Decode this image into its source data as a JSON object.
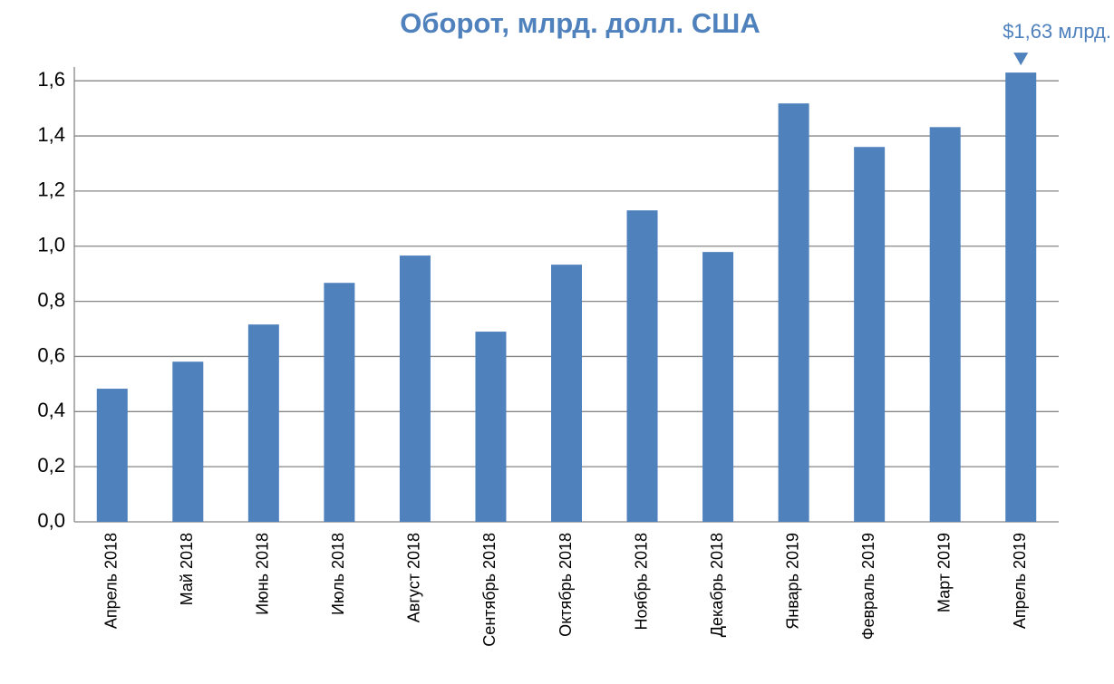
{
  "chart_data": {
    "type": "bar",
    "title": "Оборот, млрд. долл. США",
    "annotation": "$1,63 млрд.",
    "categories": [
      "Апрель 2018",
      "Май 2018",
      "Июнь 2018",
      "Июль 2018",
      "Август 2018",
      "Сентябрь 2018",
      "Октябрь 2018",
      "Ноябрь 2018",
      "Декабрь 2018",
      "Январь 2019",
      "Февраль 2019",
      "Март 2019",
      "Апрель 2019"
    ],
    "values": [
      0.483,
      0.581,
      0.716,
      0.867,
      0.966,
      0.69,
      0.933,
      1.13,
      0.979,
      1.518,
      1.36,
      1.432,
      1.63
    ],
    "color": "#4f81bd",
    "ylim": [
      0,
      1.65
    ],
    "yticks": [
      {
        "value": 0,
        "label": "0,0"
      },
      {
        "value": 0.2,
        "label": "0,2"
      },
      {
        "value": 0.4,
        "label": "0,4"
      },
      {
        "value": 0.6,
        "label": "0,6"
      },
      {
        "value": 0.8,
        "label": "0,8"
      },
      {
        "value": 1.0,
        "label": "1,0"
      },
      {
        "value": 1.2,
        "label": "1,2"
      },
      {
        "value": 1.4,
        "label": "1,4"
      },
      {
        "value": 1.6,
        "label": "1,6"
      }
    ],
    "grid": true
  }
}
